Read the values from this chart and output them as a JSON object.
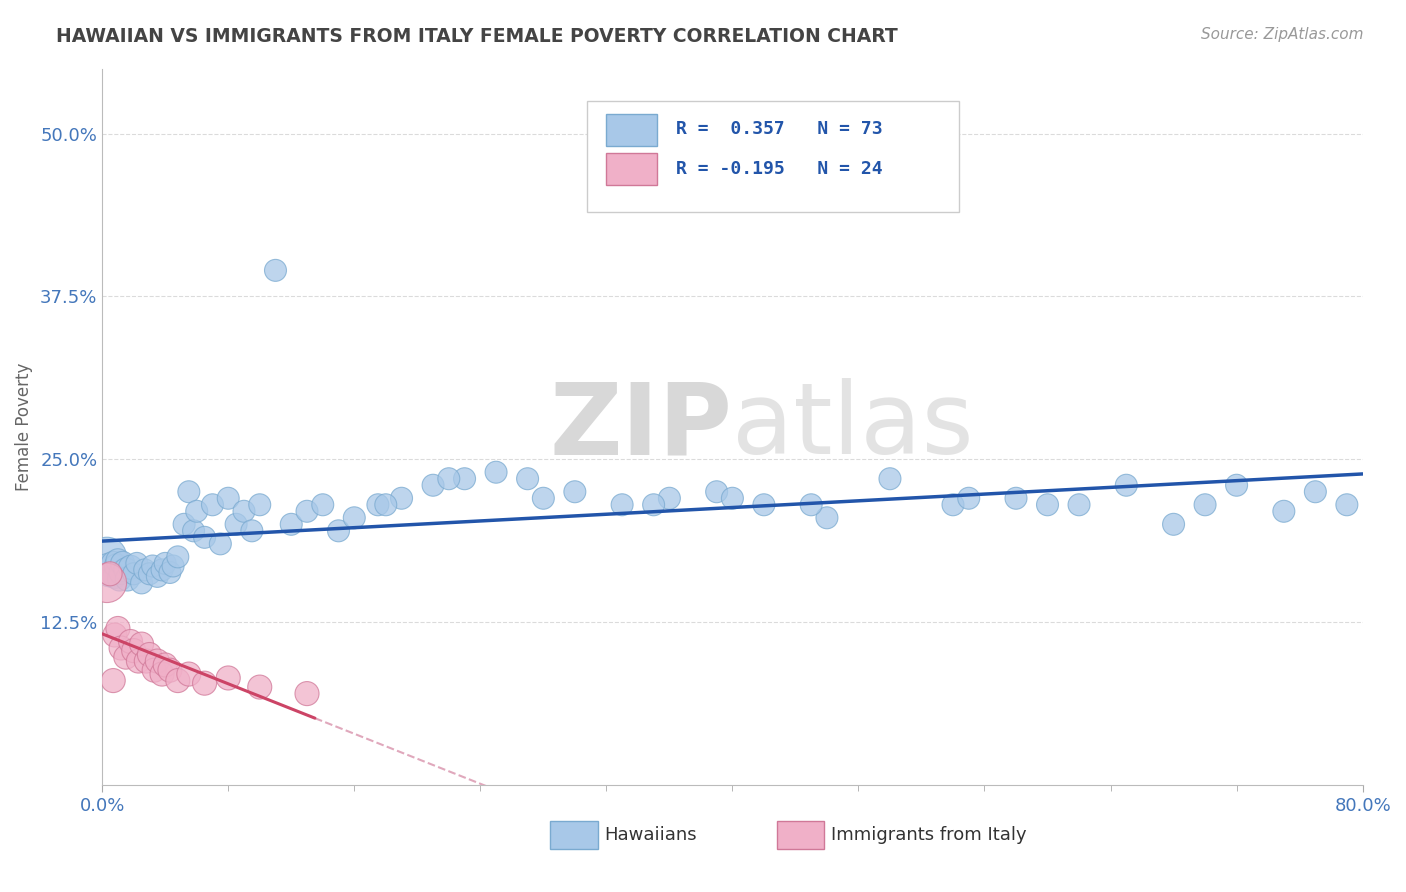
{
  "title": "HAWAIIAN VS IMMIGRANTS FROM ITALY FEMALE POVERTY CORRELATION CHART",
  "source_text": "Source: ZipAtlas.com",
  "ylabel": "Female Poverty",
  "xlim": [
    0.0,
    0.8
  ],
  "ylim": [
    0.0,
    0.55
  ],
  "x_ticks": [
    0.0,
    0.8
  ],
  "x_tick_labels": [
    "0.0%",
    "80.0%"
  ],
  "y_ticks": [
    0.125,
    0.25,
    0.375,
    0.5
  ],
  "y_tick_labels": [
    "12.5%",
    "25.0%",
    "37.5%",
    "50.0%"
  ],
  "hawaiian_color": "#a8c8e8",
  "hawaiian_edge": "#7aaad0",
  "hawaiian_trend": "#2255aa",
  "italian_color": "#f0b0c8",
  "italian_edge": "#d07898",
  "italian_trend": "#cc4466",
  "italian_trend_dash": "#e0a8bc",
  "background": "#ffffff",
  "grid_color": "#cccccc",
  "tick_color": "#4477bb",
  "title_color": "#444444",
  "source_color": "#999999",
  "ylabel_color": "#666666",
  "watermark_zip_color": "#d8d8d8",
  "watermark_atlas_color": "#d8d8d8",
  "legend_text_color": "#333333",
  "legend_R_color": "#2255aa",
  "legend_N_color": "#2255aa",
  "hawaiians_x": [
    0.003,
    0.005,
    0.007,
    0.008,
    0.009,
    0.01,
    0.011,
    0.012,
    0.013,
    0.015,
    0.016,
    0.018,
    0.02,
    0.022,
    0.025,
    0.027,
    0.03,
    0.032,
    0.035,
    0.038,
    0.04,
    0.043,
    0.045,
    0.048,
    0.052,
    0.055,
    0.058,
    0.06,
    0.065,
    0.07,
    0.075,
    0.08,
    0.085,
    0.09,
    0.095,
    0.1,
    0.11,
    0.12,
    0.13,
    0.14,
    0.15,
    0.16,
    0.175,
    0.19,
    0.21,
    0.23,
    0.25,
    0.27,
    0.3,
    0.33,
    0.36,
    0.39,
    0.42,
    0.46,
    0.5,
    0.54,
    0.58,
    0.62,
    0.65,
    0.68,
    0.7,
    0.72,
    0.75,
    0.77,
    0.79,
    0.55,
    0.6,
    0.45,
    0.4,
    0.35,
    0.28,
    0.22,
    0.18
  ],
  "hawaiians_y": [
    0.175,
    0.165,
    0.17,
    0.16,
    0.168,
    0.172,
    0.158,
    0.163,
    0.17,
    0.165,
    0.158,
    0.167,
    0.162,
    0.17,
    0.155,
    0.165,
    0.162,
    0.168,
    0.16,
    0.165,
    0.17,
    0.163,
    0.168,
    0.175,
    0.2,
    0.225,
    0.195,
    0.21,
    0.19,
    0.215,
    0.185,
    0.22,
    0.2,
    0.21,
    0.195,
    0.215,
    0.395,
    0.2,
    0.21,
    0.215,
    0.195,
    0.205,
    0.215,
    0.22,
    0.23,
    0.235,
    0.24,
    0.235,
    0.225,
    0.215,
    0.22,
    0.225,
    0.215,
    0.205,
    0.235,
    0.215,
    0.22,
    0.215,
    0.23,
    0.2,
    0.215,
    0.23,
    0.21,
    0.225,
    0.215,
    0.22,
    0.215,
    0.215,
    0.22,
    0.215,
    0.22,
    0.235,
    0.215
  ],
  "hawaiians_sizes": [
    800,
    600,
    300,
    300,
    300,
    300,
    300,
    300,
    300,
    300,
    300,
    300,
    250,
    250,
    250,
    250,
    250,
    250,
    250,
    250,
    250,
    250,
    250,
    250,
    250,
    250,
    250,
    250,
    250,
    250,
    250,
    250,
    250,
    250,
    250,
    250,
    250,
    250,
    250,
    250,
    250,
    250,
    250,
    250,
    250,
    250,
    250,
    250,
    250,
    250,
    250,
    250,
    250,
    250,
    250,
    250,
    250,
    250,
    250,
    250,
    250,
    250,
    250,
    250,
    250,
    250,
    250,
    250,
    250,
    250,
    250,
    250,
    250
  ],
  "italians_x": [
    0.003,
    0.005,
    0.007,
    0.008,
    0.01,
    0.012,
    0.015,
    0.018,
    0.02,
    0.023,
    0.025,
    0.028,
    0.03,
    0.033,
    0.035,
    0.038,
    0.04,
    0.043,
    0.048,
    0.055,
    0.065,
    0.08,
    0.1,
    0.13
  ],
  "italians_y": [
    0.155,
    0.162,
    0.08,
    0.115,
    0.12,
    0.105,
    0.098,
    0.11,
    0.103,
    0.095,
    0.108,
    0.095,
    0.1,
    0.088,
    0.095,
    0.085,
    0.092,
    0.088,
    0.08,
    0.085,
    0.078,
    0.082,
    0.075,
    0.07
  ],
  "italians_sizes": [
    800,
    300,
    300,
    300,
    300,
    300,
    300,
    300,
    300,
    300,
    300,
    300,
    300,
    300,
    300,
    300,
    300,
    300,
    300,
    300,
    300,
    300,
    300,
    300
  ]
}
